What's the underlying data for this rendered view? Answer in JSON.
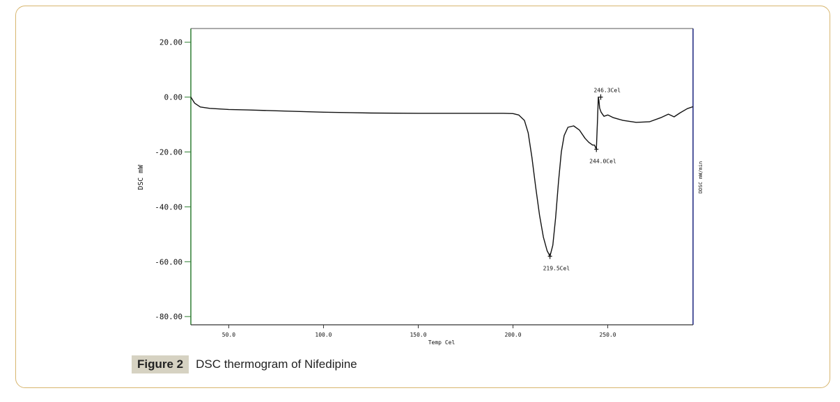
{
  "figure": {
    "label": "Figure 2",
    "caption": "DSC thermogram of Nifedipine"
  },
  "colors": {
    "frame": "#d7b56d",
    "left_axis": "#2e7d32",
    "right_axis": "#1a237e",
    "curve": "#111111",
    "caption_bg": "#d6d2c2"
  },
  "chart_data": {
    "type": "line",
    "title": "",
    "xlabel": "Temp Cel",
    "ylabel": "DSC mW",
    "y2label": "DDSC mW/min",
    "xlim": [
      30,
      295
    ],
    "ylim": [
      -83,
      25
    ],
    "x_ticks": [
      50,
      100,
      150,
      200,
      250
    ],
    "x_tick_labels": [
      "50.0",
      "100.0",
      "150.0",
      "200.0",
      "250.0"
    ],
    "y_ticks": [
      20,
      0,
      -20,
      -40,
      -60,
      -80
    ],
    "y_tick_labels": [
      "20.00",
      "0.00",
      "-20.00",
      "-40.00",
      "-60.00",
      "-80.00"
    ],
    "grid": false,
    "series": [
      {
        "values": [
          [
            30,
            0
          ],
          [
            32,
            -2.2
          ],
          [
            35,
            -3.6
          ],
          [
            40,
            -4.1
          ],
          [
            50,
            -4.5
          ],
          [
            60,
            -4.7
          ],
          [
            75,
            -5.0
          ],
          [
            100,
            -5.5
          ],
          [
            125,
            -5.8
          ],
          [
            150,
            -5.9
          ],
          [
            175,
            -5.9
          ],
          [
            195,
            -5.9
          ],
          [
            200,
            -6.0
          ],
          [
            203,
            -6.5
          ],
          [
            206,
            -8.5
          ],
          [
            208,
            -13
          ],
          [
            210,
            -22
          ],
          [
            212,
            -33
          ],
          [
            214,
            -43
          ],
          [
            216,
            -51
          ],
          [
            218,
            -56
          ],
          [
            219.5,
            -58
          ],
          [
            221,
            -54
          ],
          [
            222.5,
            -44
          ],
          [
            224,
            -31
          ],
          [
            225.5,
            -20
          ],
          [
            227,
            -14
          ],
          [
            229,
            -11
          ],
          [
            232,
            -10.5
          ],
          [
            235,
            -12
          ],
          [
            238,
            -15
          ],
          [
            240,
            -16.5
          ],
          [
            242,
            -17.5
          ],
          [
            243,
            -17.5
          ],
          [
            244,
            -19
          ],
          [
            244.6,
            -8
          ],
          [
            245,
            0
          ],
          [
            245.3,
            -1
          ],
          [
            245.7,
            -4
          ],
          [
            246.5,
            -5.5
          ],
          [
            248,
            -7
          ],
          [
            250,
            -6.5
          ],
          [
            253,
            -7.5
          ],
          [
            258,
            -8.5
          ],
          [
            265,
            -9.2
          ],
          [
            272,
            -9
          ],
          [
            278,
            -7.5
          ],
          [
            282,
            -6.2
          ],
          [
            285,
            -7.2
          ],
          [
            288,
            -5.8
          ],
          [
            292,
            -4.2
          ],
          [
            295,
            -3.5
          ]
        ]
      }
    ],
    "annotations": [
      {
        "text": "246.3Cel",
        "x": 246.3,
        "y": 0
      },
      {
        "text": "244.0Cel",
        "x": 244.0,
        "y": -19
      },
      {
        "text": "219.5Cel",
        "x": 219.5,
        "y": -58
      }
    ]
  }
}
